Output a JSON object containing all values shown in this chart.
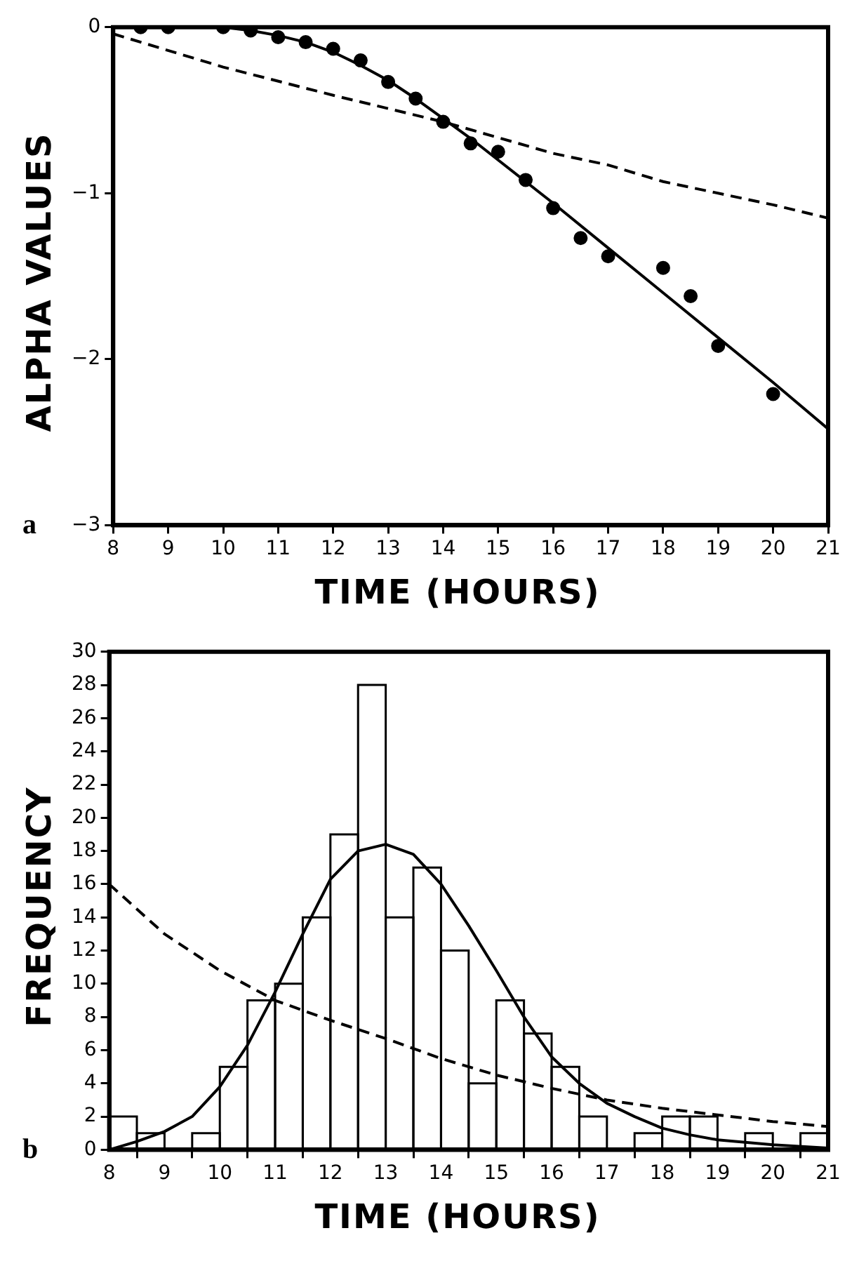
{
  "chart_data": [
    {
      "type": "scatter",
      "xlabel": "TIME (HOURS)",
      "ylabel": "ALPHA VALUES",
      "annotations": [
        "a"
      ],
      "color": "#000000",
      "marker": "circle",
      "x": [
        8.5,
        9,
        10,
        10.5,
        11,
        11.5,
        12,
        12.5,
        13,
        13.5,
        14,
        14.5,
        15,
        15.5,
        16,
        16.5,
        17,
        18,
        18.5,
        19,
        20
      ],
      "values": [
        0,
        0,
        0,
        -0.02,
        -0.06,
        -0.09,
        -0.13,
        -0.2,
        -0.33,
        -0.43,
        -0.57,
        -0.7,
        -0.75,
        -0.92,
        -1.09,
        -1.27,
        -1.38,
        -1.45,
        -1.62,
        -1.92,
        -2.21
      ],
      "series": [
        {
          "type": "line",
          "color": "#000000",
          "line_style": "solid",
          "marker": "none",
          "x": [
            8,
            10,
            10.5,
            11,
            11.5,
            12,
            12.5,
            13,
            13.5,
            14,
            14.5,
            15,
            16,
            17,
            18,
            19,
            20,
            21
          ],
          "values": [
            0,
            0,
            -0.02,
            -0.05,
            -0.09,
            -0.15,
            -0.23,
            -0.32,
            -0.43,
            -0.55,
            -0.67,
            -0.8,
            -1.06,
            -1.33,
            -1.6,
            -1.87,
            -2.14,
            -2.42
          ]
        },
        {
          "type": "line",
          "color": "#000000",
          "line_style": "dashed",
          "marker": "none",
          "x": [
            8,
            10,
            12,
            14,
            16,
            17,
            18,
            20,
            21
          ],
          "values": [
            -0.04,
            -0.24,
            -0.41,
            -0.57,
            -0.76,
            -0.83,
            -0.93,
            -1.07,
            -1.15
          ]
        }
      ],
      "xlim": [
        8,
        21
      ],
      "xticks": [
        8,
        9,
        10,
        11,
        12,
        13,
        14,
        15,
        16,
        17,
        18,
        19,
        20,
        21
      ],
      "ylim": [
        -3,
        0
      ],
      "yticks": [
        -3,
        -2,
        -1,
        0
      ],
      "grid": false
    },
    {
      "type": "histogram",
      "xlabel": "TIME (HOURS)",
      "ylabel": "FREQUENCY",
      "annotations": [
        "b"
      ],
      "color": "#000000",
      "bins": [
        8,
        8.5,
        9,
        9.5,
        10,
        10.5,
        11,
        11.5,
        12,
        12.5,
        13,
        13.5,
        14,
        14.5,
        15,
        15.5,
        16,
        16.5,
        17,
        17.5,
        18,
        18.5,
        19,
        19.5,
        20,
        20.5,
        21
      ],
      "values": [
        2,
        1,
        0,
        1,
        5,
        9,
        10,
        14,
        19,
        28,
        14,
        17,
        12,
        4,
        9,
        7,
        5,
        2,
        0,
        1,
        2,
        2,
        0,
        1,
        0,
        1
      ],
      "series": [
        {
          "type": "line",
          "color": "#000000",
          "line_style": "solid",
          "x": [
            8,
            8.5,
            9,
            9.5,
            10,
            10.5,
            11,
            11.5,
            12,
            12.5,
            13,
            13.5,
            14,
            14.5,
            15,
            15.5,
            16,
            16.5,
            17,
            17.5,
            18,
            18.5,
            19,
            20,
            21
          ],
          "values": [
            0,
            0.5,
            1.1,
            2,
            3.8,
            6.3,
            9.5,
            13,
            16.3,
            18,
            18.4,
            17.8,
            16,
            13.5,
            10.8,
            8,
            5.6,
            4,
            2.8,
            2,
            1.3,
            0.9,
            0.6,
            0.3,
            0.1
          ]
        },
        {
          "type": "line",
          "color": "#000000",
          "line_style": "dashed",
          "x": [
            8,
            9,
            10,
            11,
            12,
            13,
            14,
            15,
            16,
            17,
            18,
            19,
            20,
            21
          ],
          "values": [
            16,
            13,
            10.8,
            9,
            7.8,
            6.7,
            5.5,
            4.5,
            3.7,
            3,
            2.5,
            2.1,
            1.7,
            1.4
          ]
        }
      ],
      "xlim": [
        8,
        21
      ],
      "xticks": [
        8,
        9,
        10,
        11,
        12,
        13,
        14,
        15,
        16,
        17,
        18,
        19,
        20,
        21
      ],
      "ylim": [
        0,
        30
      ],
      "yticks": [
        0,
        2,
        4,
        6,
        8,
        10,
        12,
        14,
        16,
        18,
        20,
        22,
        24,
        26,
        28,
        30
      ],
      "grid": false
    }
  ]
}
